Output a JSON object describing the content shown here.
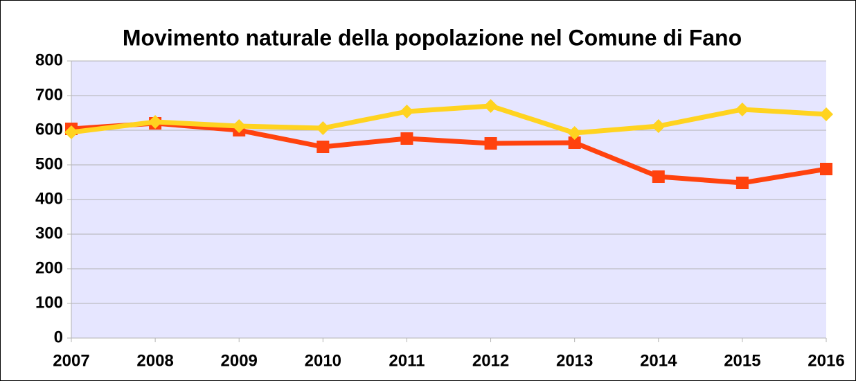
{
  "chart_data": {
    "type": "line",
    "title": "Movimento naturale della popolazione nel Comune di Fano",
    "categories": [
      "2007",
      "2008",
      "2009",
      "2010",
      "2011",
      "2012",
      "2013",
      "2014",
      "2015",
      "2016"
    ],
    "series": [
      {
        "color": "#ff420e",
        "marker": "square",
        "values": [
          604,
          620,
          600,
          552,
          576,
          562,
          564,
          466,
          448,
          488
        ]
      },
      {
        "color": "#ffd320",
        "marker": "diamond",
        "values": [
          594,
          624,
          612,
          606,
          654,
          670,
          592,
          612,
          660,
          646
        ]
      }
    ],
    "ylim": [
      0,
      800
    ],
    "yticks": [
      0,
      100,
      200,
      300,
      400,
      500,
      600,
      700,
      800
    ],
    "grid": true
  }
}
